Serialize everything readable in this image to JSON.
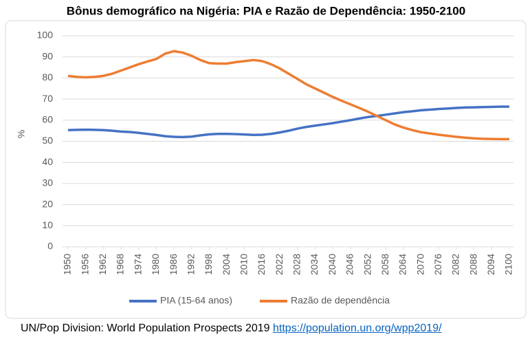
{
  "chart_data": {
    "type": "line",
    "title": "Bônus demográfico na Nigéria: PIA e Razão de Dependência: 1950-2100",
    "ylabel": "%",
    "x": [
      1950,
      1953,
      1956,
      1959,
      1962,
      1965,
      1968,
      1971,
      1974,
      1977,
      1980,
      1983,
      1986,
      1989,
      1992,
      1995,
      1998,
      2001,
      2004,
      2007,
      2010,
      2013,
      2016,
      2019,
      2022,
      2025,
      2028,
      2031,
      2034,
      2037,
      2040,
      2043,
      2046,
      2049,
      2052,
      2055,
      2058,
      2061,
      2064,
      2067,
      2070,
      2073,
      2076,
      2079,
      2082,
      2085,
      2088,
      2091,
      2094,
      2097,
      2100
    ],
    "series": [
      {
        "name": "PIA (15-64 anos)",
        "color": "#4472c4",
        "values": [
          55.3,
          55.4,
          55.5,
          55.4,
          55.3,
          55,
          54.6,
          54.4,
          54,
          53.5,
          53,
          52.4,
          52.1,
          52,
          52.2,
          52.8,
          53.3,
          53.5,
          53.5,
          53.4,
          53.2,
          53,
          53.1,
          53.5,
          54.2,
          55,
          56,
          56.8,
          57.4,
          58,
          58.6,
          59.3,
          60,
          60.8,
          61.5,
          62,
          62.6,
          63.2,
          63.8,
          64.2,
          64.7,
          65,
          65.3,
          65.5,
          65.8,
          66,
          66.1,
          66.2,
          66.3,
          66.4,
          66.4
        ]
      },
      {
        "name": "Razão de dependência",
        "color": "#ed7d31",
        "values": [
          81,
          80.5,
          80.3,
          80.5,
          81,
          82,
          83.5,
          85,
          86.5,
          87.8,
          89,
          91.5,
          92.7,
          92,
          90.5,
          88.5,
          87,
          86.8,
          86.8,
          87.5,
          88,
          88.5,
          88,
          86.5,
          84.5,
          82,
          79.5,
          77,
          75,
          73,
          71,
          69.2,
          67.5,
          65.8,
          64,
          62,
          60,
          58,
          56.5,
          55.3,
          54.3,
          53.7,
          53.1,
          52.6,
          52.1,
          51.7,
          51.4,
          51.2,
          51.1,
          51,
          51
        ]
      }
    ],
    "xlim": [
      1950,
      2100
    ],
    "xticks": [
      1950,
      1956,
      1962,
      1968,
      1974,
      1980,
      1986,
      1992,
      1998,
      2004,
      2010,
      2016,
      2022,
      2028,
      2034,
      2040,
      2046,
      2052,
      2058,
      2064,
      2070,
      2076,
      2082,
      2088,
      2094,
      2100
    ],
    "ylim": [
      0,
      100
    ],
    "yticks": [
      0,
      10,
      20,
      30,
      40,
      50,
      60,
      70,
      80,
      90,
      100
    ],
    "grid": true,
    "legend": "bottom"
  },
  "footer": {
    "text": "UN/Pop Division: World Population Prospects 2019",
    "link": "https://population.un.org/wpp2019/"
  }
}
